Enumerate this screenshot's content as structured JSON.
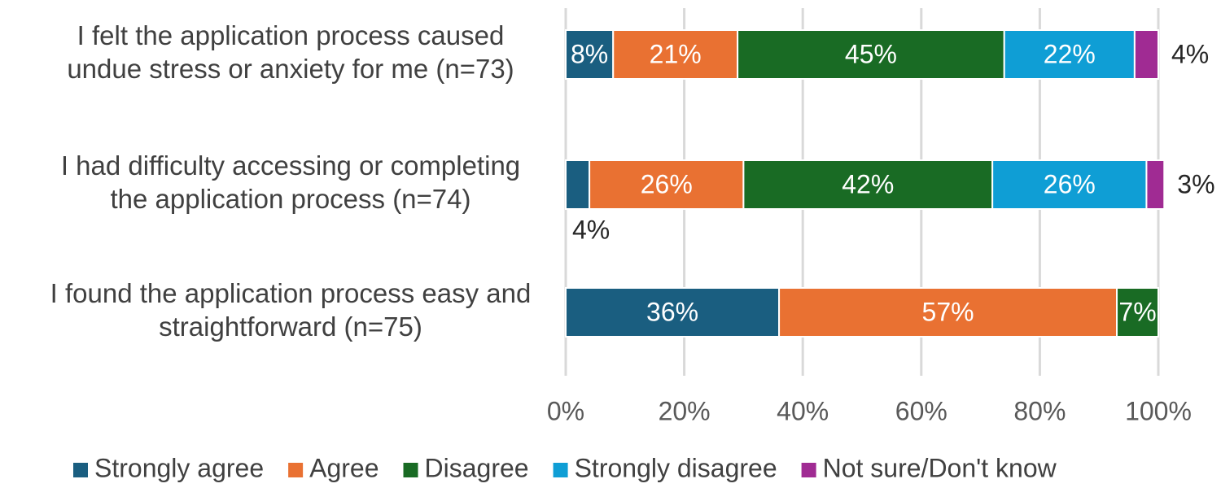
{
  "chart_data": {
    "type": "stacked-bar-horizontal",
    "categories": [
      [
        "I felt the application process caused",
        "undue stress or anxiety for me (n=73)"
      ],
      [
        "I had difficulty accessing or completing",
        "the application process (n=74)"
      ],
      [
        "I found the application process easy and",
        "straightforward (n=75)"
      ]
    ],
    "series": [
      {
        "name": "Strongly agree",
        "color": "#1a5e80",
        "values": [
          8,
          4,
          36
        ],
        "value_labels": [
          "8%",
          "4%",
          "36%"
        ]
      },
      {
        "name": "Agree",
        "color": "#e97132",
        "values": [
          21,
          26,
          57
        ],
        "value_labels": [
          "21%",
          "26%",
          "57%"
        ]
      },
      {
        "name": "Disagree",
        "color": "#196b24",
        "values": [
          45,
          42,
          7
        ],
        "value_labels": [
          "45%",
          "42%",
          "7%"
        ]
      },
      {
        "name": "Strongly disagree",
        "color": "#0f9ed5",
        "values": [
          22,
          26,
          null
        ],
        "value_labels": [
          "22%",
          "26%",
          null
        ]
      },
      {
        "name": "Not sure/Don't know",
        "color": "#a02b93",
        "values": [
          4,
          3,
          null
        ],
        "value_labels": [
          "4%",
          "3%",
          null
        ]
      }
    ],
    "xlim": [
      0,
      100
    ],
    "xticks": [
      {
        "value": 0,
        "label": "0%"
      },
      {
        "value": 20,
        "label": "20%"
      },
      {
        "value": 40,
        "label": "40%"
      },
      {
        "value": 60,
        "label": "60%"
      },
      {
        "value": 80,
        "label": "80%"
      },
      {
        "value": 100,
        "label": "100%"
      }
    ],
    "grid": true,
    "legend": "bottom"
  }
}
